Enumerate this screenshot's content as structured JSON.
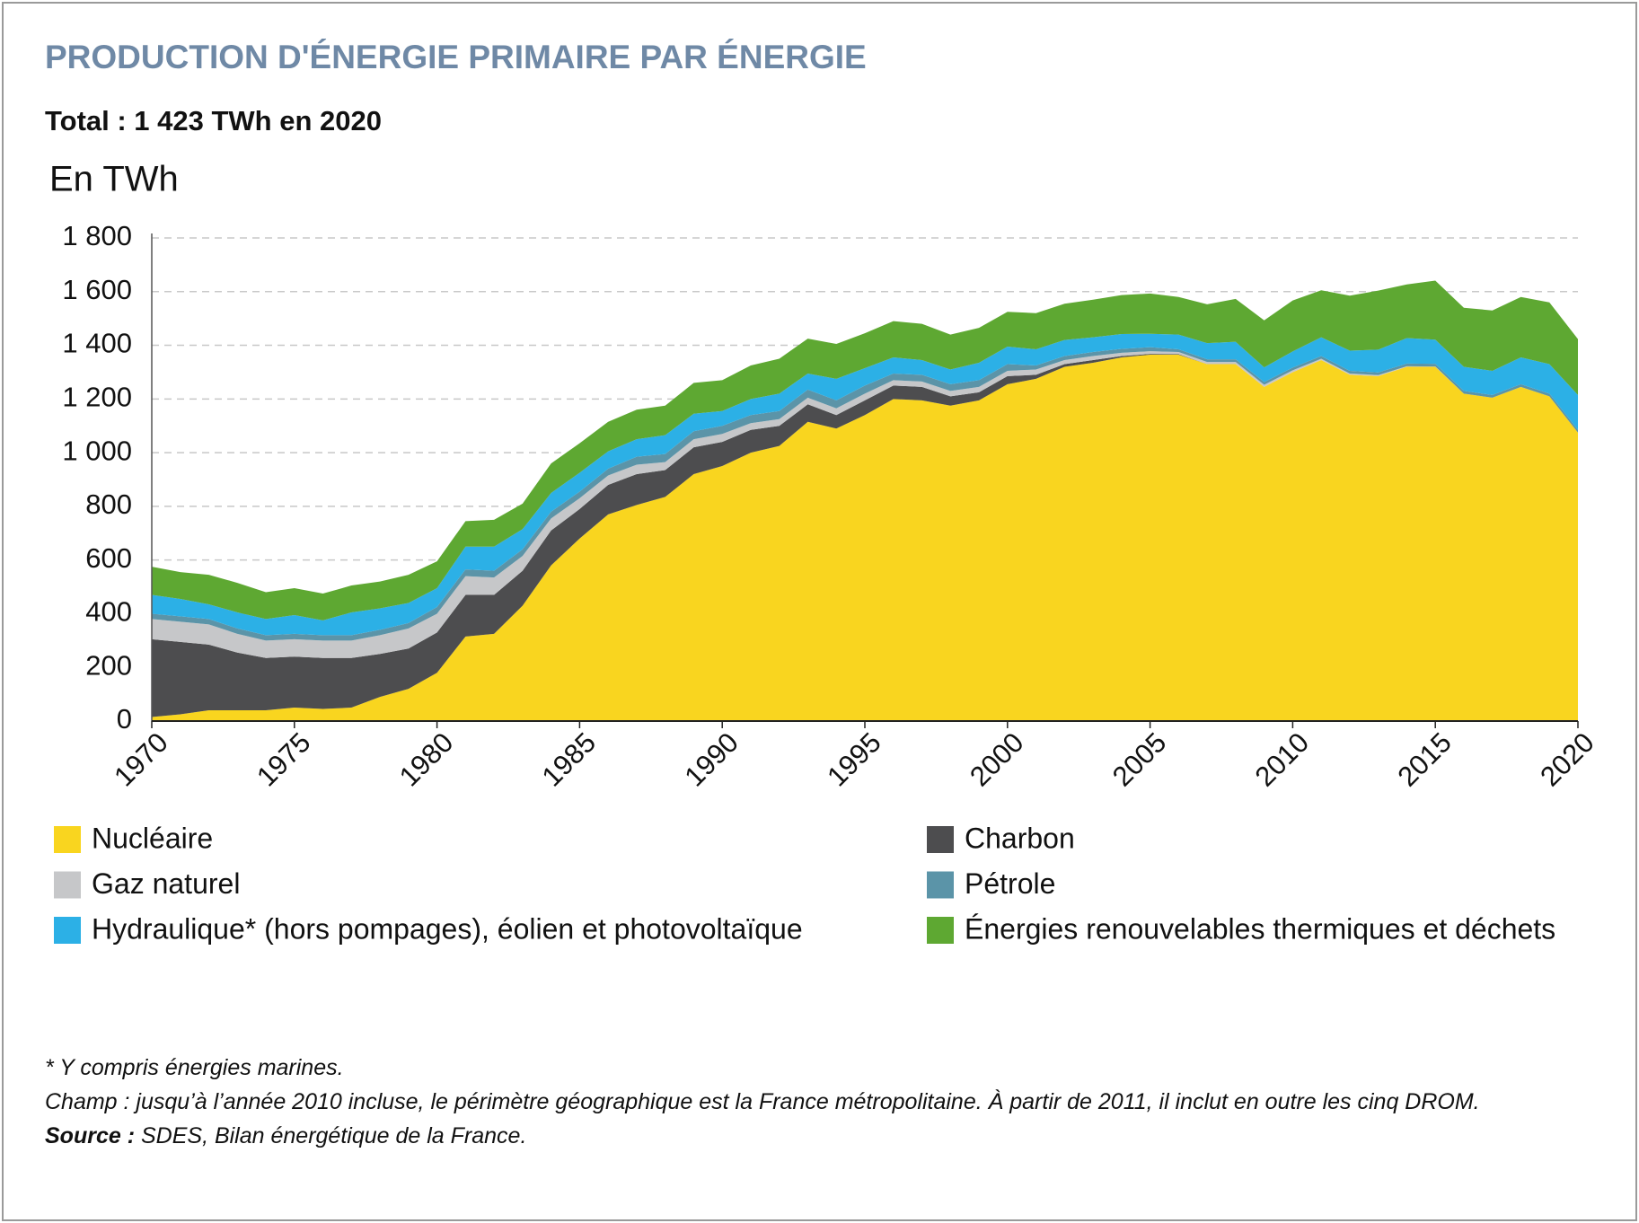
{
  "chart_data": {
    "type": "stacked_area",
    "title": "PRODUCTION D'ÉNERGIE PRIMAIRE PAR ÉNERGIE",
    "subtitle": "Total : 1 423 TWh en 2020",
    "y_label": "En TWh",
    "x": [
      1970,
      1971,
      1972,
      1973,
      1974,
      1975,
      1976,
      1977,
      1978,
      1979,
      1980,
      1981,
      1982,
      1983,
      1984,
      1985,
      1986,
      1987,
      1988,
      1989,
      1990,
      1991,
      1992,
      1993,
      1994,
      1995,
      1996,
      1997,
      1998,
      1999,
      2000,
      2001,
      2002,
      2003,
      2004,
      2005,
      2006,
      2007,
      2008,
      2009,
      2010,
      2011,
      2012,
      2013,
      2014,
      2015,
      2016,
      2017,
      2018,
      2019,
      2020
    ],
    "xlim": [
      1970,
      2020
    ],
    "xticks": [
      1970,
      1975,
      1980,
      1985,
      1990,
      1995,
      2000,
      2005,
      2010,
      2015,
      2020
    ],
    "ylim": [
      0,
      1800
    ],
    "yticks": [
      0,
      200,
      400,
      600,
      800,
      {
        "value": 1000,
        "label": "1 000"
      },
      {
        "value": 1200,
        "label": "1 200"
      },
      {
        "value": 1400,
        "label": "1 400"
      },
      {
        "value": 1600,
        "label": "1 600"
      },
      {
        "value": 1800,
        "label": "1 800"
      }
    ],
    "grid": true,
    "series": [
      {
        "name": "Nucléaire",
        "color": "#f9d51f",
        "values": [
          15,
          25,
          40,
          40,
          40,
          50,
          45,
          50,
          90,
          120,
          180,
          315,
          325,
          430,
          580,
          680,
          770,
          805,
          835,
          920,
          950,
          1000,
          1025,
          1115,
          1090,
          1140,
          1200,
          1195,
          1175,
          1195,
          1255,
          1275,
          1320,
          1335,
          1355,
          1365,
          1365,
          1330,
          1330,
          1245,
          1300,
          1345,
          1290,
          1285,
          1320,
          1320,
          1220,
          1205,
          1245,
          1210,
          1075
        ]
      },
      {
        "name": "Charbon",
        "color": "#4d4d4f",
        "values": [
          290,
          270,
          245,
          215,
          195,
          190,
          190,
          185,
          160,
          150,
          150,
          155,
          145,
          130,
          130,
          110,
          110,
          115,
          100,
          100,
          90,
          85,
          75,
          65,
          50,
          55,
          50,
          50,
          35,
          30,
          30,
          15,
          10,
          10,
          5,
          3,
          2,
          0,
          0,
          0,
          0,
          0,
          0,
          0,
          0,
          0,
          0,
          0,
          0,
          0,
          0
        ]
      },
      {
        "name": "Gaz naturel",
        "color": "#c6c7c9",
        "values": [
          75,
          75,
          75,
          70,
          65,
          65,
          65,
          65,
          70,
          75,
          70,
          70,
          65,
          55,
          45,
          40,
          35,
          35,
          30,
          30,
          30,
          25,
          25,
          25,
          25,
          25,
          20,
          20,
          20,
          20,
          20,
          20,
          15,
          15,
          12,
          10,
          8,
          8,
          8,
          8,
          7,
          5,
          5,
          4,
          2,
          1,
          0,
          0,
          0,
          0,
          0
        ]
      },
      {
        "name": "Pétrole",
        "color": "#5b94a8",
        "values": [
          20,
          20,
          20,
          20,
          20,
          20,
          20,
          20,
          20,
          20,
          25,
          25,
          25,
          25,
          25,
          25,
          25,
          30,
          30,
          30,
          30,
          30,
          30,
          30,
          30,
          30,
          25,
          25,
          25,
          25,
          25,
          15,
          15,
          15,
          15,
          15,
          10,
          10,
          10,
          10,
          10,
          10,
          10,
          10,
          10,
          10,
          10,
          10,
          10,
          10,
          10
        ]
      },
      {
        "name": "Hydraulique* (hors pompages), éolien et photovoltaïque",
        "color": "#2cb0e6",
        "values": [
          70,
          65,
          55,
          60,
          60,
          70,
          55,
          85,
          80,
          75,
          70,
          85,
          90,
          75,
          70,
          70,
          65,
          65,
          70,
          65,
          55,
          60,
          65,
          60,
          80,
          65,
          60,
          55,
          55,
          65,
          65,
          60,
          60,
          55,
          55,
          50,
          55,
          60,
          65,
          55,
          60,
          70,
          75,
          85,
          95,
          90,
          90,
          90,
          100,
          110,
          130
        ]
      },
      {
        "name": "Énergies renouvelables thermiques et déchets",
        "color": "#5ea832",
        "values": [
          105,
          100,
          110,
          110,
          100,
          100,
          100,
          100,
          100,
          105,
          100,
          95,
          100,
          95,
          110,
          110,
          110,
          110,
          110,
          115,
          115,
          125,
          130,
          130,
          130,
          130,
          135,
          135,
          130,
          130,
          130,
          135,
          135,
          140,
          145,
          150,
          140,
          145,
          160,
          175,
          190,
          175,
          205,
          220,
          200,
          220,
          220,
          225,
          225,
          230,
          208
        ]
      }
    ],
    "notes": [
      "* Y compris énergies marines.",
      "Champ : jusqu’à l’année 2010 incluse, le périmètre géographique est la France métropolitaine. À partir de 2011, il inclut en outre les cinq DROM."
    ],
    "source_label": "Source :",
    "source_text": "SDES, Bilan énergétique de la France."
  }
}
